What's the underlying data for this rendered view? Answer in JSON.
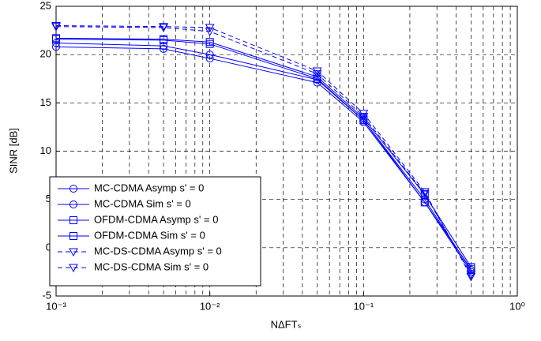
{
  "chart_data": {
    "type": "line",
    "x_label": "NΔFTₛ",
    "y_label": "SINR [dB]",
    "xscale": "log",
    "xlim": [
      0.001,
      1
    ],
    "xticks": [
      {
        "value": 0.001,
        "label": "10⁻³"
      },
      {
        "value": 0.01,
        "label": "10⁻²"
      },
      {
        "value": 0.1,
        "label": "10⁻¹"
      },
      {
        "value": 1,
        "label": "10⁰"
      }
    ],
    "ylim": [
      -5,
      25
    ],
    "yticks": [
      -5,
      0,
      5,
      10,
      15,
      20,
      25
    ],
    "grid": true,
    "minor_grid": true,
    "legend": "lower left",
    "x": [
      0.001,
      0.005,
      0.01,
      0.05,
      0.1,
      0.25,
      0.5
    ],
    "series": [
      {
        "name": "MC-CDMA Asymp s' = 0",
        "color": "#0000ff",
        "marker": "circle",
        "line_style": "solid",
        "values": [
          20.8,
          20.6,
          19.6,
          17.1,
          13.0,
          4.7,
          -2.5
        ]
      },
      {
        "name": "MC-CDMA Sim s' = 0",
        "color": "#0000ff",
        "marker": "circle",
        "line_style": "solid",
        "values": [
          21.2,
          20.9,
          20.0,
          17.4,
          13.2,
          5.0,
          -2.3
        ]
      },
      {
        "name": "OFDM-CDMA Asymp s' = 0",
        "color": "#0000ff",
        "marker": "square",
        "line_style": "solid",
        "values": [
          21.6,
          21.5,
          21.1,
          17.5,
          13.2,
          4.7,
          -2.2
        ]
      },
      {
        "name": "OFDM-CDMA Sim s' = 0",
        "color": "#0000ff",
        "marker": "square",
        "line_style": "solid",
        "values": [
          21.7,
          21.6,
          21.3,
          17.7,
          13.4,
          5.5,
          -2.0
        ]
      },
      {
        "name": "MC-DS-CDMA Asymp s' = 0",
        "color": "#0000ff",
        "marker": "triangle",
        "line_style": "dashed",
        "values": [
          22.9,
          22.8,
          22.4,
          18.0,
          13.6,
          5.6,
          -2.8
        ]
      },
      {
        "name": "MC-DS-CDMA Sim s' = 0",
        "color": "#0000ff",
        "marker": "triangle",
        "line_style": "dashed",
        "values": [
          23.0,
          22.9,
          22.8,
          18.3,
          13.9,
          5.8,
          -3.0
        ]
      }
    ]
  }
}
